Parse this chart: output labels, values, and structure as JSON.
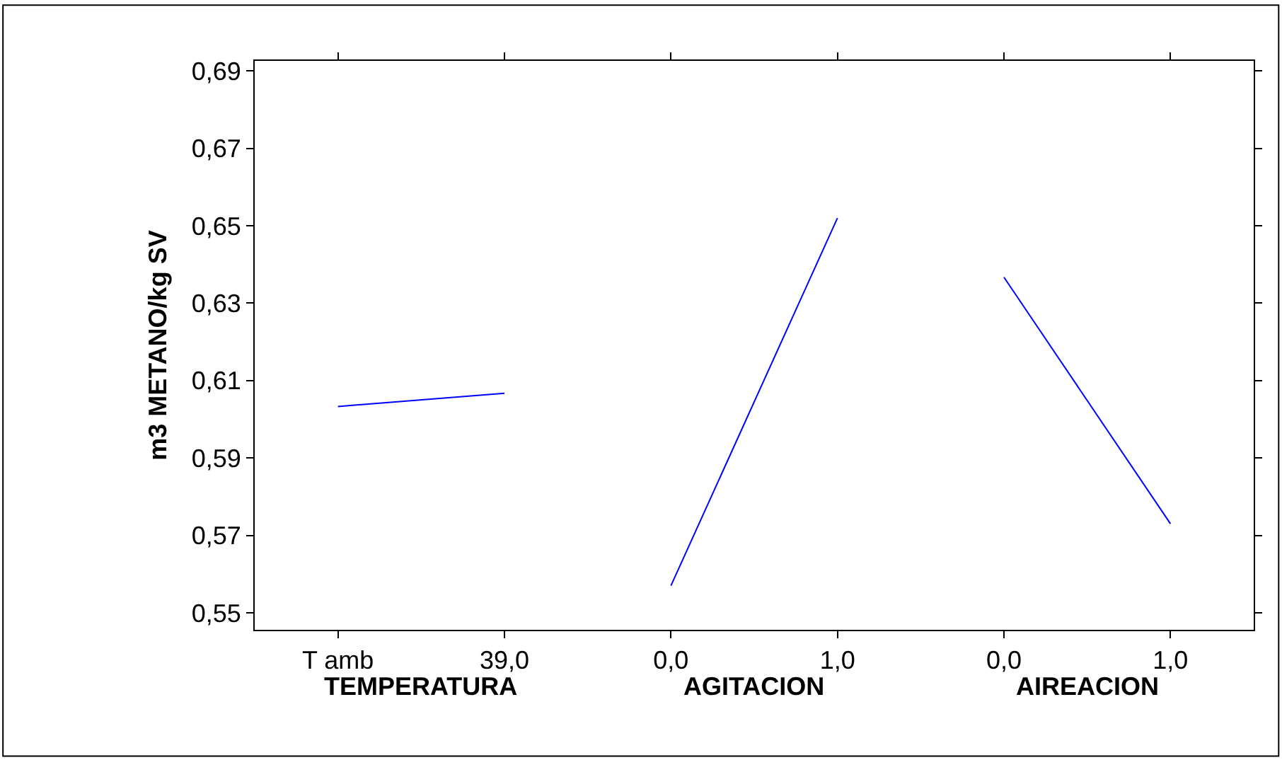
{
  "chart_data": {
    "type": "line",
    "ylabel": "m3 METANO/kg SV",
    "categories": [
      "T amb",
      "39,0",
      "0,0",
      "1,0",
      "0,0",
      "1,0"
    ],
    "series": [
      {
        "color": "#0000ff",
        "values": [
          0.6033,
          0.6067,
          null,
          null,
          null,
          null
        ]
      },
      {
        "color": "#0000ff",
        "values": [
          null,
          null,
          0.557,
          0.652,
          null,
          null
        ]
      },
      {
        "color": "#0000ff",
        "values": [
          null,
          null,
          null,
          null,
          0.6367,
          0.573
        ]
      }
    ],
    "annotations": [
      "TEMPERATURA",
      "AGITACION",
      "AIREACION"
    ],
    "ylim": [
      0.5456,
      0.6926
    ],
    "yticks": [
      {
        "value": 0.55,
        "label": "0,55"
      },
      {
        "value": 0.57,
        "label": "0,57"
      },
      {
        "value": 0.59,
        "label": "0,59"
      },
      {
        "value": 0.61,
        "label": "0,61"
      },
      {
        "value": 0.63,
        "label": "0,63"
      },
      {
        "value": 0.65,
        "label": "0,65"
      },
      {
        "value": 0.67,
        "label": "0,67"
      },
      {
        "value": 0.69,
        "label": "0,69"
      }
    ],
    "marker": "none",
    "line_style": "solid"
  }
}
